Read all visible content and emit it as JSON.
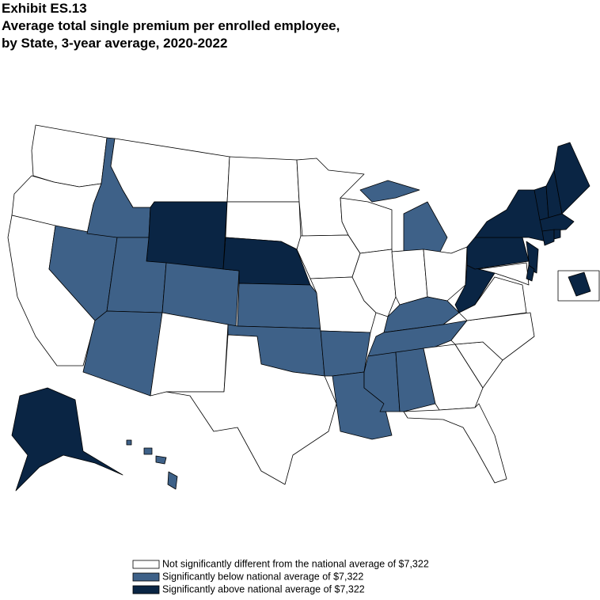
{
  "header": {
    "title": [
      "Exhibit ES.13",
      "Average total single premium per enrolled employee,",
      "by State, 3-year average, 2020-2022"
    ]
  },
  "legend": [
    {
      "label": "Not significantly different from the national average of  $7,322",
      "color": "#ffffff"
    },
    {
      "label": "Significantly below national average of  $7,322",
      "color": "#3e6188"
    },
    {
      "label": "Significantly above national average of  $7,322",
      "color": "#0a2544"
    }
  ]
}
